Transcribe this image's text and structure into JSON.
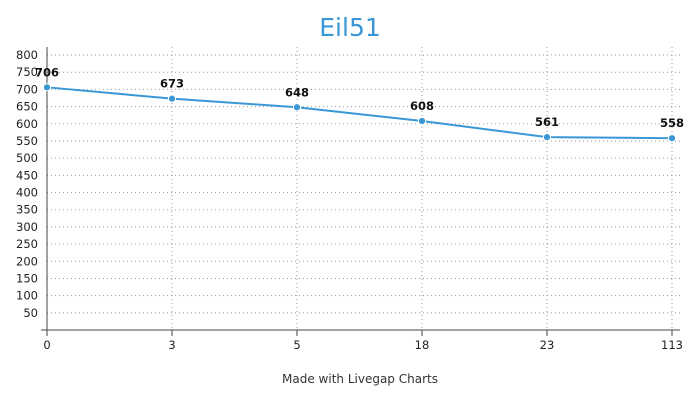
{
  "chart_data": {
    "type": "line",
    "title": "Eil51",
    "xlabel": "",
    "ylabel": "",
    "categories": [
      "0",
      "3",
      "5",
      "18",
      "23",
      "113"
    ],
    "series": [
      {
        "values": [
          706,
          673,
          648,
          608,
          561,
          558
        ],
        "color": "#3a97d6"
      }
    ],
    "data_labels": [
      "706",
      "673",
      "648",
      "608",
      "561",
      "558"
    ],
    "y_ticks": [
      50,
      100,
      150,
      200,
      250,
      300,
      350,
      400,
      450,
      500,
      550,
      600,
      650,
      700,
      750,
      800
    ],
    "ylim": [
      0,
      800
    ],
    "grid": true,
    "legend": "none"
  },
  "footer": {
    "credit": "Made with Livegap Charts"
  }
}
